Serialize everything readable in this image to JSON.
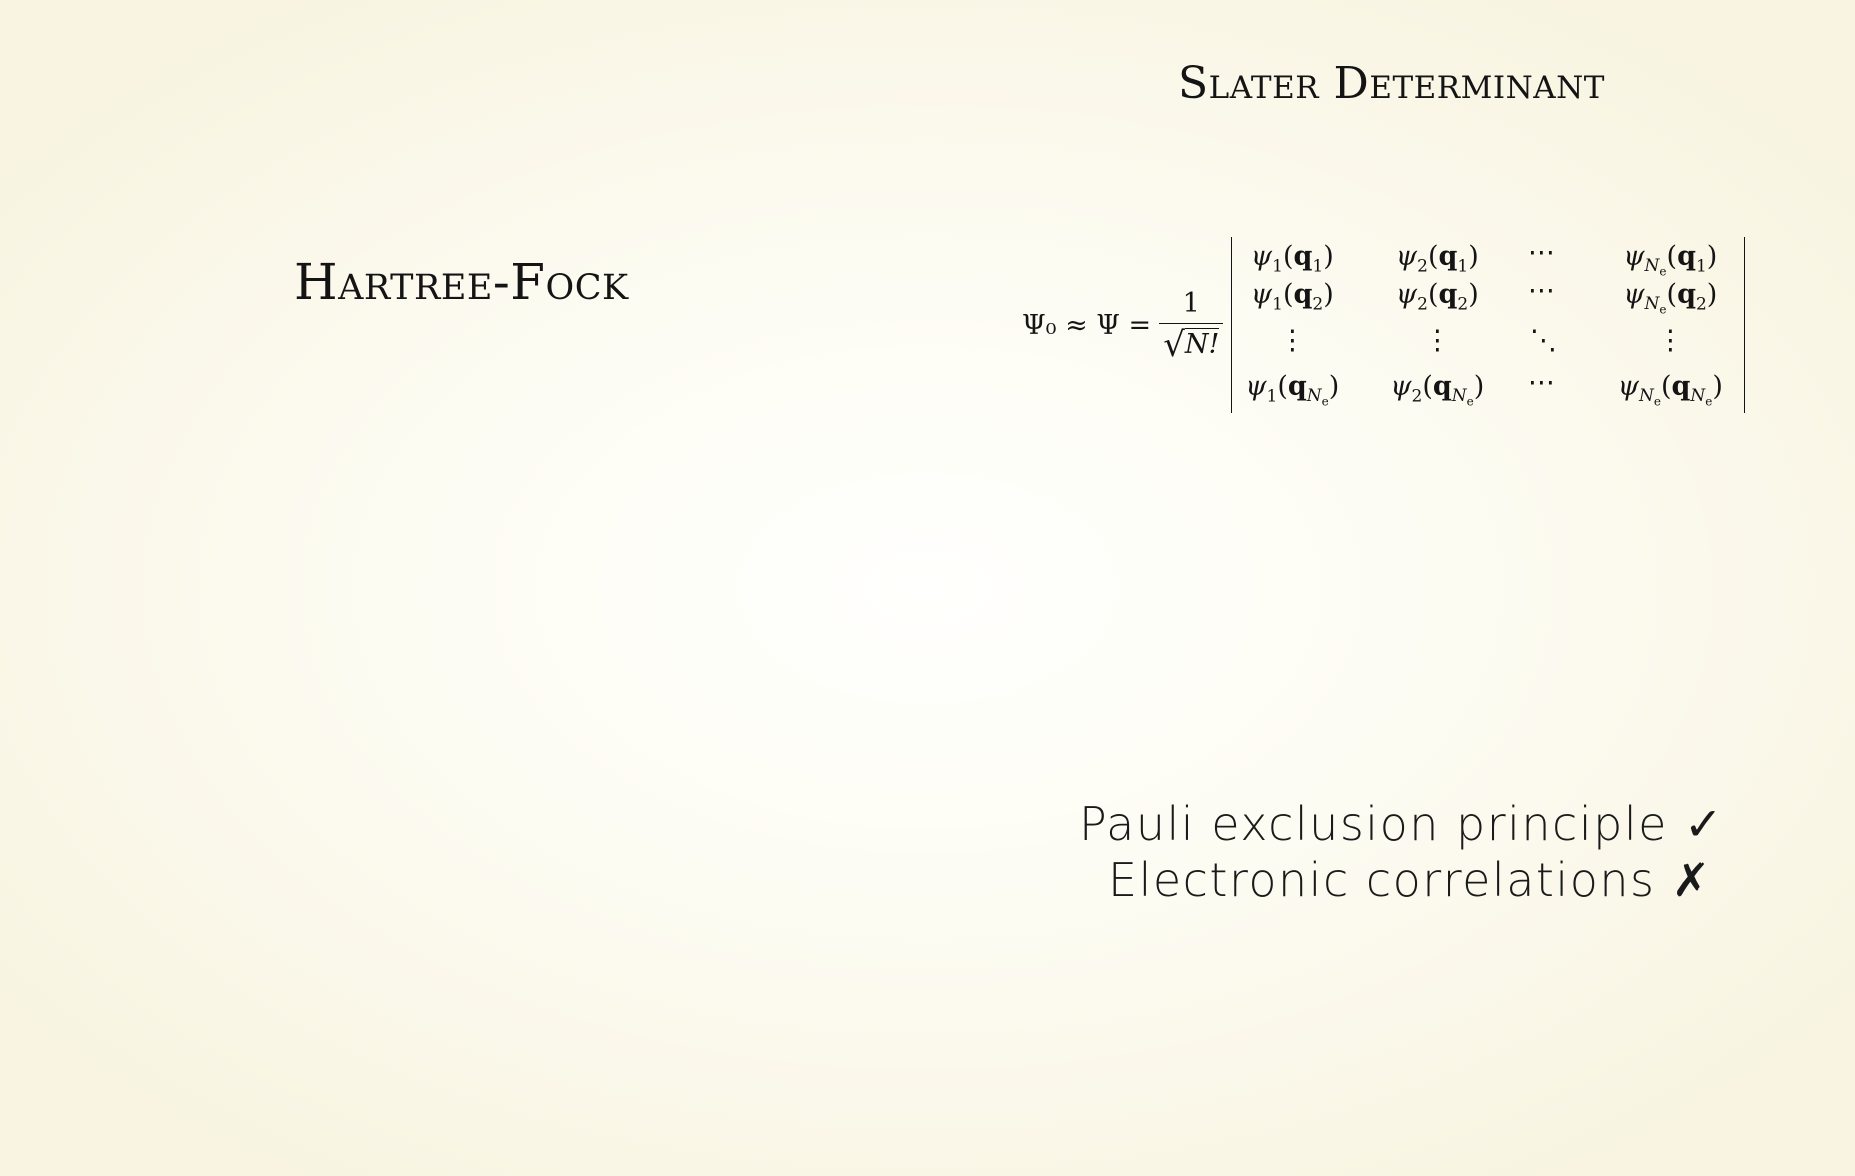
{
  "slide": {
    "left_title": "Hartree-Fock",
    "right_title": "Slater Determinant",
    "equation": {
      "lhs": "Ψ₀ ≈ Ψ =",
      "numerator": "1",
      "denominator": "N!",
      "rows": [
        [
          "ψ1(q1)",
          "ψ2(q1)",
          "⋯",
          "ψNe(q1)"
        ],
        [
          "ψ1(q2)",
          "ψ2(q2)",
          "⋯",
          "ψNe(q2)"
        ],
        [
          "⋮",
          "⋮",
          "⋱",
          "⋮"
        ],
        [
          "ψ1(qNe)",
          "ψ2(qNe)",
          "⋯",
          "ψNe(qNe)"
        ]
      ]
    },
    "notes": [
      {
        "text": "Pauli exclusion principle",
        "mark": "✓"
      },
      {
        "text": "Electronic correlations",
        "mark": "✗"
      }
    ]
  }
}
